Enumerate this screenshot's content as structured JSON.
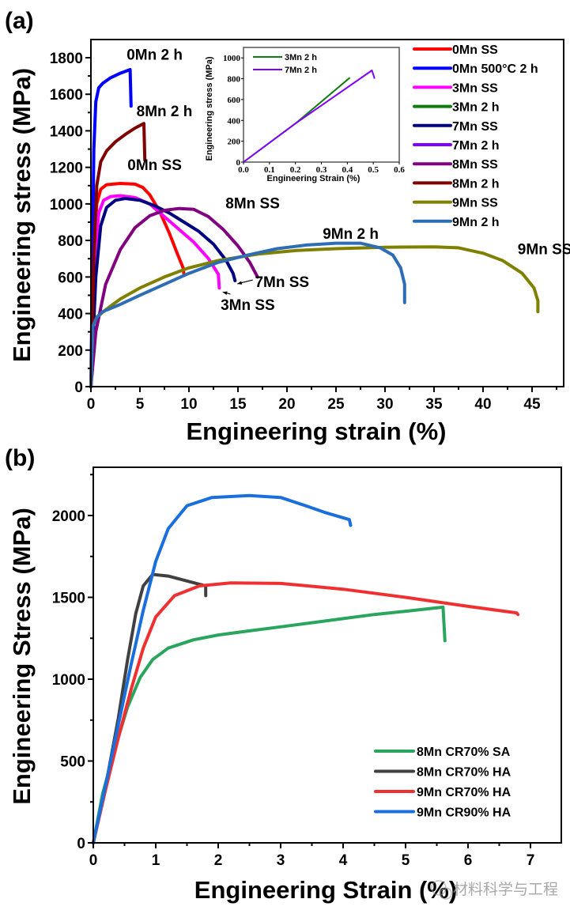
{
  "watermark": {
    "text": "材料科学与工程",
    "icon": "wechat-icon"
  },
  "chart_data": [
    {
      "panel": "(a)",
      "type": "line",
      "xlabel": "Engineering strain (%)",
      "ylabel": "Engineering stress (MPa)",
      "xlim": [
        0,
        48
      ],
      "ylim": [
        0,
        1900
      ],
      "xticks": [
        0,
        5,
        10,
        15,
        20,
        25,
        30,
        35,
        40,
        45
      ],
      "yticks": [
        0,
        200,
        400,
        600,
        800,
        1000,
        1200,
        1400,
        1600,
        1800
      ],
      "grid": false,
      "legend_placement": "top-right",
      "series": [
        {
          "name": "0Mn SS",
          "color": "#ff0000",
          "points": [
            [
              0,
              0
            ],
            [
              0.3,
              700
            ],
            [
              0.6,
              1000
            ],
            [
              1.0,
              1080
            ],
            [
              1.6,
              1105
            ],
            [
              3,
              1112
            ],
            [
              4.5,
              1108
            ],
            [
              5.3,
              1090
            ],
            [
              6,
              1050
            ],
            [
              7,
              960
            ],
            [
              8,
              840
            ],
            [
              8.8,
              730
            ],
            [
              9.4,
              650
            ],
            [
              9.5,
              610
            ]
          ]
        },
        {
          "name": "0Mn 500°C 2 h",
          "color": "#0000ff",
          "points": [
            [
              0,
              0
            ],
            [
              0.3,
              1300
            ],
            [
              0.5,
              1560
            ],
            [
              0.8,
              1635
            ],
            [
              1.2,
              1660
            ],
            [
              2,
              1690
            ],
            [
              3,
              1715
            ],
            [
              4,
              1735
            ],
            [
              4.1,
              1535
            ]
          ]
        },
        {
          "name": "3Mn SS",
          "color": "#ff00ff",
          "points": [
            [
              0,
              0
            ],
            [
              0.4,
              700
            ],
            [
              0.8,
              950
            ],
            [
              1.3,
              1020
            ],
            [
              2,
              1040
            ],
            [
              3,
              1045
            ],
            [
              4.5,
              1035
            ],
            [
              6,
              1000
            ],
            [
              7.5,
              930
            ],
            [
              9,
              860
            ],
            [
              10.5,
              790
            ],
            [
              12,
              700
            ],
            [
              13,
              615
            ],
            [
              13.1,
              540
            ]
          ]
        },
        {
          "name": "3Mn 2 h",
          "color": "#107c10",
          "points": []
        },
        {
          "name": "7Mn SS",
          "color": "#000080",
          "points": [
            [
              0,
              0
            ],
            [
              0.5,
              600
            ],
            [
              1,
              880
            ],
            [
              1.6,
              980
            ],
            [
              2.5,
              1020
            ],
            [
              3.5,
              1030
            ],
            [
              5,
              1020
            ],
            [
              6.5,
              990
            ],
            [
              8,
              950
            ],
            [
              9.5,
              900
            ],
            [
              11,
              850
            ],
            [
              12.5,
              780
            ],
            [
              13.8,
              690
            ],
            [
              14.5,
              620
            ],
            [
              14.7,
              580
            ]
          ]
        },
        {
          "name": "7Mn 2 h",
          "color": "#8000ff",
          "points": []
        },
        {
          "name": "8Mn SS",
          "color": "#800080",
          "points": [
            [
              0,
              0
            ],
            [
              0.5,
              300
            ],
            [
              1.5,
              560
            ],
            [
              3,
              750
            ],
            [
              4.5,
              870
            ],
            [
              6,
              935
            ],
            [
              7.5,
              965
            ],
            [
              9,
              975
            ],
            [
              10.5,
              970
            ],
            [
              12,
              930
            ],
            [
              13.5,
              860
            ],
            [
              15,
              770
            ],
            [
              16.2,
              680
            ],
            [
              17,
              600
            ]
          ]
        },
        {
          "name": "8Mn 2 h",
          "color": "#800000",
          "points": [
            [
              0,
              0
            ],
            [
              0.3,
              700
            ],
            [
              0.6,
              1100
            ],
            [
              1,
              1230
            ],
            [
              1.6,
              1290
            ],
            [
              2.5,
              1340
            ],
            [
              3.5,
              1380
            ],
            [
              4.5,
              1415
            ],
            [
              5.4,
              1440
            ],
            [
              5.5,
              1240
            ]
          ]
        },
        {
          "name": "9Mn SS",
          "color": "#808000",
          "points": [
            [
              0,
              0
            ],
            [
              0.2,
              330
            ],
            [
              0.6,
              380
            ],
            [
              1.5,
              420
            ],
            [
              3,
              480
            ],
            [
              5,
              540
            ],
            [
              7.5,
              600
            ],
            [
              10,
              650
            ],
            [
              13,
              690
            ],
            [
              17,
              725
            ],
            [
              21,
              745
            ],
            [
              25,
              755
            ],
            [
              30,
              763
            ],
            [
              35,
              765
            ],
            [
              37.5,
              760
            ],
            [
              40,
              730
            ],
            [
              42,
              690
            ],
            [
              44,
              620
            ],
            [
              45.2,
              540
            ],
            [
              45.6,
              470
            ],
            [
              45.6,
              410
            ]
          ]
        },
        {
          "name": "9Mn 2 h",
          "color": "#2e6db4",
          "points": [
            [
              0,
              0
            ],
            [
              0.2,
              330
            ],
            [
              0.6,
              380
            ],
            [
              1.2,
              410
            ],
            [
              3,
              450
            ],
            [
              5,
              500
            ],
            [
              7.5,
              560
            ],
            [
              10,
              620
            ],
            [
              13,
              680
            ],
            [
              16,
              720
            ],
            [
              19,
              755
            ],
            [
              22,
              775
            ],
            [
              25,
              785
            ],
            [
              27.5,
              785
            ],
            [
              29.5,
              760
            ],
            [
              30.8,
              720
            ],
            [
              31.6,
              650
            ],
            [
              32,
              560
            ],
            [
              32,
              460
            ]
          ]
        }
      ],
      "annotations": [
        {
          "text": "0Mn 2 h",
          "x": 6.5,
          "y": 1790
        },
        {
          "text": "8Mn 2 h",
          "x": 7.5,
          "y": 1480
        },
        {
          "text": "0Mn SS",
          "x": 6.5,
          "y": 1185
        },
        {
          "text": "8Mn SS",
          "x": 16.5,
          "y": 975
        },
        {
          "text": "9Mn 2 h",
          "x": 26.5,
          "y": 810
        },
        {
          "text": "9Mn SS",
          "x": 46.3,
          "y": 725
        },
        {
          "text": "7Mn SS",
          "x": 19.5,
          "y": 545,
          "arrow_to": [
            14.7,
            580
          ]
        },
        {
          "text": "3Mn SS",
          "x": 16,
          "y": 420,
          "arrow_to": [
            13.2,
            535
          ]
        }
      ],
      "inset": {
        "xlabel": "Engineering Strain (%)",
        "ylabel": "Engineering stress (MPa)",
        "xlim": [
          0,
          0.6
        ],
        "ylim": [
          0,
          1100
        ],
        "xticks": [
          "0.0",
          "0.1",
          "0.2",
          "0.3",
          "0.4",
          "0.5",
          "0.6"
        ],
        "yticks": [
          "0",
          "200",
          "400",
          "600",
          "800",
          "1000"
        ],
        "series": [
          {
            "name": "3Mn 2 h",
            "color": "#107c10",
            "points": [
              [
                0,
                0
              ],
              [
                0.2,
                370
              ],
              [
                0.41,
                810
              ]
            ]
          },
          {
            "name": "7Mn 2 h",
            "color": "#8000ff",
            "points": [
              [
                0,
                0
              ],
              [
                0.2,
                370
              ],
              [
                0.495,
                880
              ],
              [
                0.505,
                800
              ]
            ]
          }
        ]
      }
    },
    {
      "panel": "(b)",
      "type": "line",
      "xlabel": "Engineering Strain (%)",
      "ylabel": "Engineering Stress (MPa)",
      "xlim": [
        0,
        7.5
      ],
      "ylim": [
        0,
        2300
      ],
      "xticks": [
        0,
        1,
        2,
        3,
        4,
        5,
        6,
        7
      ],
      "yticks": [
        0,
        500,
        1000,
        1500,
        2000
      ],
      "grid": false,
      "legend_placement": "bottom-right",
      "series": [
        {
          "name": "8Mn CR70% SA",
          "color": "#2aa55e",
          "points": [
            [
              0,
              0
            ],
            [
              0.15,
              300
            ],
            [
              0.35,
              580
            ],
            [
              0.55,
              830
            ],
            [
              0.75,
              1010
            ],
            [
              0.95,
              1120
            ],
            [
              1.2,
              1190
            ],
            [
              1.6,
              1240
            ],
            [
              2,
              1270
            ],
            [
              2.5,
              1295
            ],
            [
              3,
              1320
            ],
            [
              3.5,
              1345
            ],
            [
              4,
              1370
            ],
            [
              4.5,
              1395
            ],
            [
              5,
              1415
            ],
            [
              5.6,
              1440
            ],
            [
              5.63,
              1235
            ]
          ]
        },
        {
          "name": "8Mn CR70% HA",
          "color": "#404040",
          "points": [
            [
              0,
              0
            ],
            [
              0.2,
              350
            ],
            [
              0.4,
              760
            ],
            [
              0.55,
              1120
            ],
            [
              0.68,
              1400
            ],
            [
              0.8,
              1570
            ],
            [
              0.95,
              1640
            ],
            [
              1.2,
              1630
            ],
            [
              1.5,
              1600
            ],
            [
              1.8,
              1570
            ],
            [
              1.8,
              1510
            ]
          ]
        },
        {
          "name": "9Mn CR70% HA",
          "color": "#f03030",
          "points": [
            [
              0,
              0
            ],
            [
              0.2,
              330
            ],
            [
              0.4,
              640
            ],
            [
              0.6,
              930
            ],
            [
              0.8,
              1190
            ],
            [
              1,
              1380
            ],
            [
              1.3,
              1510
            ],
            [
              1.7,
              1570
            ],
            [
              2.2,
              1588
            ],
            [
              3,
              1585
            ],
            [
              4,
              1550
            ],
            [
              5,
              1500
            ],
            [
              6,
              1445
            ],
            [
              6.78,
              1405
            ],
            [
              6.8,
              1395
            ]
          ]
        },
        {
          "name": "9Mn CR90% HA",
          "color": "#1a6fdc",
          "points": [
            [
              0,
              0
            ],
            [
              0.2,
              360
            ],
            [
              0.4,
              720
            ],
            [
              0.6,
              1080
            ],
            [
              0.8,
              1420
            ],
            [
              1,
              1720
            ],
            [
              1.2,
              1920
            ],
            [
              1.5,
              2060
            ],
            [
              1.9,
              2110
            ],
            [
              2.5,
              2122
            ],
            [
              3,
              2110
            ],
            [
              3.4,
              2060
            ],
            [
              3.7,
              2020
            ],
            [
              4.1,
              1975
            ],
            [
              4.12,
              1940
            ]
          ]
        }
      ]
    }
  ]
}
